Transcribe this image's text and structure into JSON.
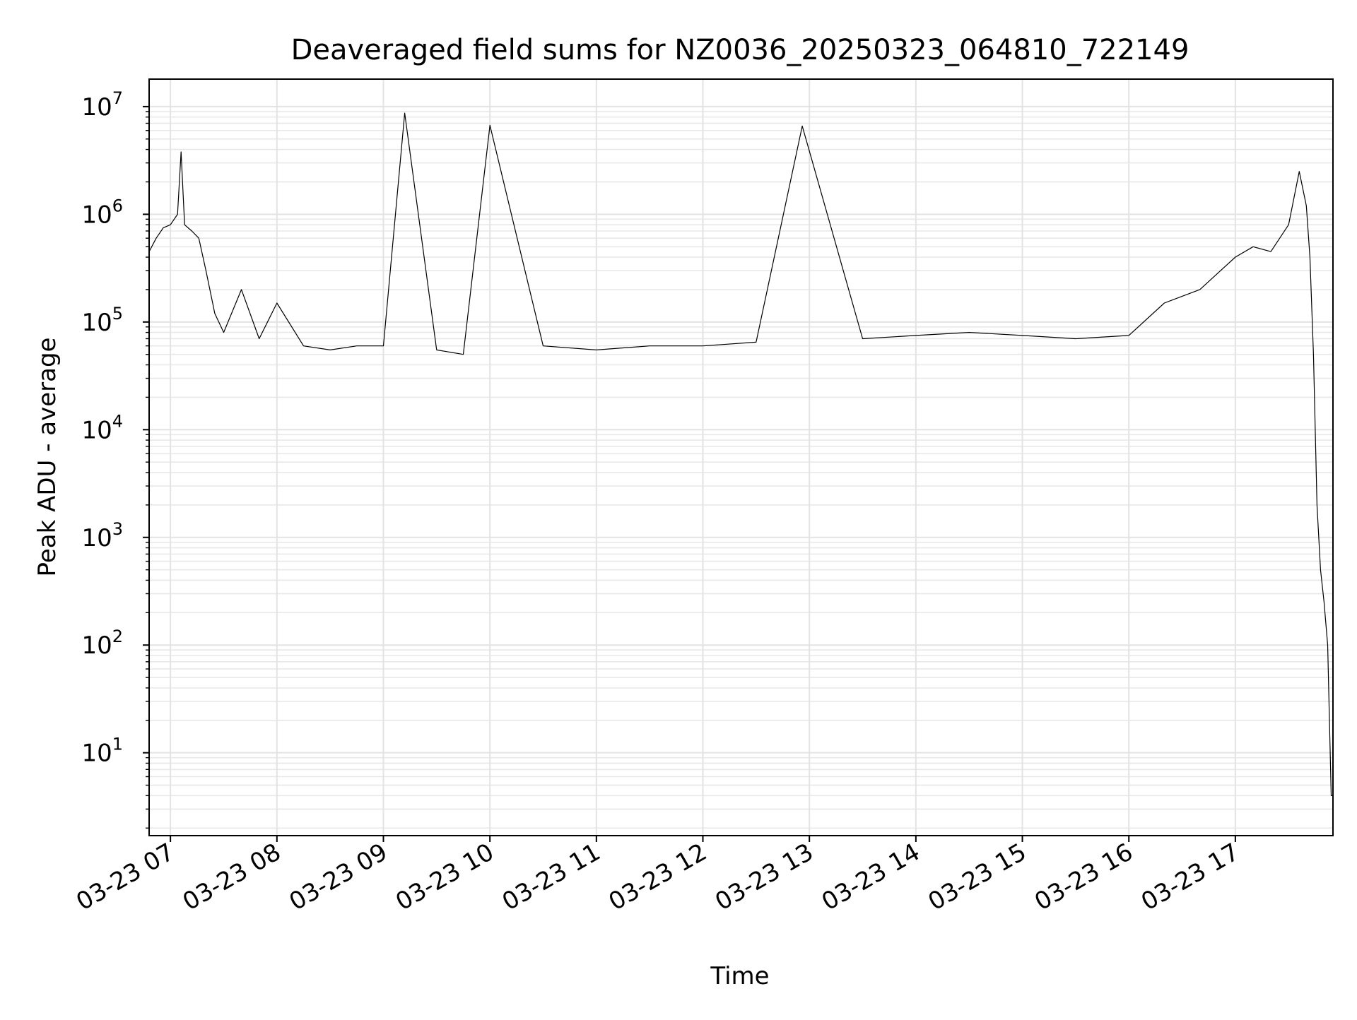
{
  "chart_data": {
    "type": "line",
    "title": "Deaveraged field sums for NZ0036_20250323_064810_722149",
    "xlabel": "Time",
    "ylabel": "Peak ADU - average",
    "yscale": "log",
    "grid": true,
    "legend": "none",
    "x_tick_labels": [
      "03-23 07",
      "03-23 08",
      "03-23 09",
      "03-23 10",
      "03-23 11",
      "03-23 12",
      "03-23 13",
      "03-23 14",
      "03-23 15",
      "03-23 16",
      "03-23 17"
    ],
    "x_tick_values": [
      "2025-03-23T07:00",
      "2025-03-23T08:00",
      "2025-03-23T09:00",
      "2025-03-23T10:00",
      "2025-03-23T11:00",
      "2025-03-23T12:00",
      "2025-03-23T13:00",
      "2025-03-23T14:00",
      "2025-03-23T15:00",
      "2025-03-23T16:00",
      "2025-03-23T17:00"
    ],
    "xlim": [
      "2025-03-23T06:48",
      "2025-03-23T17:55"
    ],
    "y_ticks": [
      {
        "base": "10",
        "exp": "1",
        "value": 10
      },
      {
        "base": "10",
        "exp": "2",
        "value": 100
      },
      {
        "base": "10",
        "exp": "3",
        "value": 1000
      },
      {
        "base": "10",
        "exp": "4",
        "value": 10000
      },
      {
        "base": "10",
        "exp": "5",
        "value": 100000
      },
      {
        "base": "10",
        "exp": "6",
        "value": 1000000
      },
      {
        "base": "10",
        "exp": "7",
        "value": 10000000
      }
    ],
    "ylim": [
      1.7,
      18000000
    ],
    "series": [
      {
        "color": "#000000",
        "x": [
          "2025-03-23T06:48",
          "2025-03-23T06:52",
          "2025-03-23T06:56",
          "2025-03-23T07:00",
          "2025-03-23T07:04",
          "2025-03-23T07:06",
          "2025-03-23T07:08",
          "2025-03-23T07:12",
          "2025-03-23T07:16",
          "2025-03-23T07:20",
          "2025-03-23T07:25",
          "2025-03-23T07:30",
          "2025-03-23T07:40",
          "2025-03-23T07:50",
          "2025-03-23T08:00",
          "2025-03-23T08:15",
          "2025-03-23T08:30",
          "2025-03-23T08:45",
          "2025-03-23T09:00",
          "2025-03-23T09:12",
          "2025-03-23T09:30",
          "2025-03-23T09:45",
          "2025-03-23T10:00",
          "2025-03-23T10:30",
          "2025-03-23T11:00",
          "2025-03-23T11:30",
          "2025-03-23T12:00",
          "2025-03-23T12:30",
          "2025-03-23T12:56",
          "2025-03-23T13:30",
          "2025-03-23T14:00",
          "2025-03-23T14:30",
          "2025-03-23T15:00",
          "2025-03-23T15:30",
          "2025-03-23T16:00",
          "2025-03-23T16:20",
          "2025-03-23T16:40",
          "2025-03-23T17:00",
          "2025-03-23T17:10",
          "2025-03-23T17:20",
          "2025-03-23T17:30",
          "2025-03-23T17:36",
          "2025-03-23T17:40",
          "2025-03-23T17:42",
          "2025-03-23T17:44",
          "2025-03-23T17:46",
          "2025-03-23T17:48",
          "2025-03-23T17:50",
          "2025-03-23T17:52",
          "2025-03-23T17:54",
          "2025-03-23T17:55"
        ],
        "y": [
          450000,
          600000,
          750000,
          800000,
          1000000,
          3800000,
          800000,
          700000,
          600000,
          300000,
          120000,
          80000,
          200000,
          70000,
          150000,
          60000,
          55000,
          60000,
          60000,
          8700000,
          55000,
          50000,
          6700000,
          60000,
          55000,
          60000,
          60000,
          65000,
          6600000,
          70000,
          75000,
          80000,
          75000,
          70000,
          75000,
          150000,
          200000,
          400000,
          500000,
          450000,
          800000,
          2500000,
          1200000,
          400000,
          50000,
          2000,
          500,
          250,
          100,
          4,
          4
        ]
      }
    ]
  }
}
